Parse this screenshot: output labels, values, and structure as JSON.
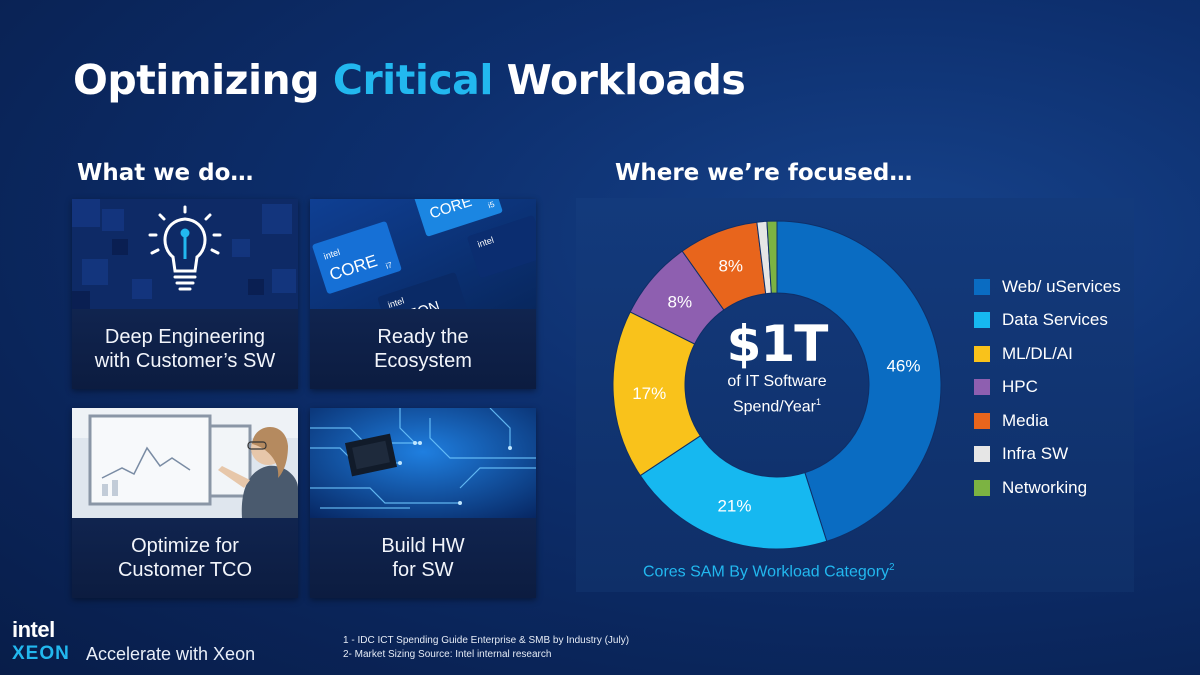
{
  "title": {
    "part1": "Optimizing ",
    "accent": "Critical",
    "part2": " Workloads"
  },
  "left": {
    "heading": "What we do…",
    "tiles": [
      {
        "label": "Deep Engineering\nwith Customer’s SW",
        "image": "lightbulb-icon"
      },
      {
        "label": "Ready the\nEcosystem",
        "image": "intel-chips-image"
      },
      {
        "label": "Optimize for\nCustomer TCO",
        "image": "woman-at-monitor-image"
      },
      {
        "label": "Build HW\nfor SW",
        "image": "circuit-board-image"
      }
    ]
  },
  "right": {
    "heading": "Where we’re focused…",
    "center_value": "$1T",
    "center_text_1": "of IT Software",
    "center_text_2": "Spend/Year",
    "center_sup": "1",
    "caption": "Cores SAM By Workload Category",
    "caption_sup": "2"
  },
  "chart_data": {
    "type": "pie",
    "title": "Cores SAM By Workload Category",
    "slices": [
      {
        "name": "Web/ uServices",
        "value": 46,
        "label": "46%",
        "color": "#0a6cc2"
      },
      {
        "name": "Data Services",
        "value": 21,
        "label": "21%",
        "color": "#16b8f0"
      },
      {
        "name": "ML/DL/AI",
        "value": 17,
        "label": "17%",
        "color": "#f9c21b"
      },
      {
        "name": "HPC",
        "value": 8,
        "label": "8%",
        "color": "#8e5fb0"
      },
      {
        "name": "Media",
        "value": 8,
        "label": "8%",
        "color": "#e8651c"
      },
      {
        "name": "Infra SW",
        "value": 1,
        "label": "",
        "color": "#e6e6e6"
      },
      {
        "name": "Networking",
        "value": 1,
        "label": "",
        "color": "#7cb342"
      }
    ],
    "legend_position": "right"
  },
  "footnotes": {
    "note1": "1 - IDC ICT Spending Guide Enterprise & SMB by Industry (July)",
    "note2": "2- Market Sizing Source: Intel internal research"
  },
  "brand": {
    "intel": "intel",
    "xeon": "XEON",
    "tagline": "Accelerate with Xeon"
  },
  "tile_chips": {
    "core": "CORE",
    "intel": "intel",
    "xeon": "XEON",
    "i7": "i7",
    "i5": "i5"
  }
}
